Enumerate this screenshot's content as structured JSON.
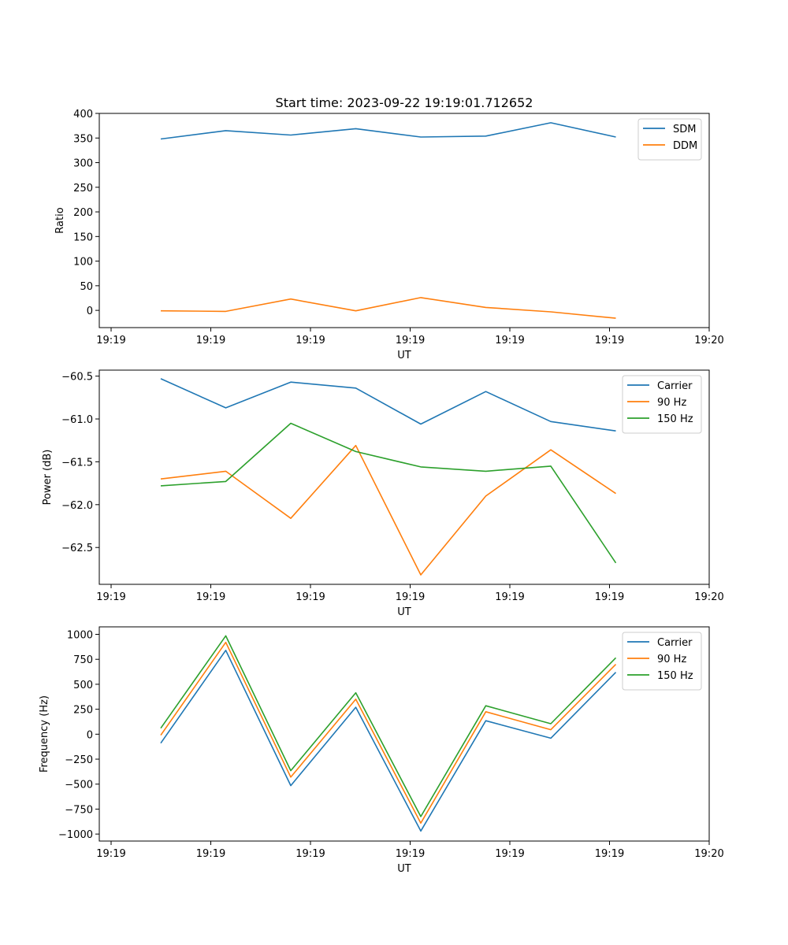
{
  "colors": {
    "blue": "#1f77b4",
    "orange": "#ff7f0e",
    "green": "#2ca02c"
  },
  "chart_data": [
    {
      "type": "line",
      "title": "Start time: 2023-09-22 19:19:01.712652",
      "xlabel": "UT",
      "ylabel": "Ratio",
      "x_tick_labels": [
        "19:19",
        "19:19",
        "19:19",
        "19:19",
        "19:19",
        "19:19",
        "19:20"
      ],
      "ylim": [
        -35,
        400
      ],
      "yticks": [
        0,
        50,
        100,
        150,
        200,
        250,
        300,
        350,
        400
      ],
      "ytick_labels": [
        "0",
        "50",
        "100",
        "150",
        "200",
        "250",
        "300",
        "350",
        "400"
      ],
      "series": [
        {
          "name": "SDM",
          "color": "blue",
          "values": [
            348,
            365,
            356,
            369,
            352,
            354,
            381,
            352
          ]
        },
        {
          "name": "DDM",
          "color": "orange",
          "values": [
            -1,
            -2,
            23,
            -1,
            26,
            6,
            -3,
            -16
          ]
        }
      ],
      "legend": "top-right"
    },
    {
      "type": "line",
      "title": "",
      "xlabel": "UT",
      "ylabel": "Power (dB)",
      "x_tick_labels": [
        "19:19",
        "19:19",
        "19:19",
        "19:19",
        "19:19",
        "19:19",
        "19:20"
      ],
      "ylim": [
        -62.93,
        -60.43
      ],
      "yticks": [
        -62.5,
        -62.0,
        -61.5,
        -61.0,
        -60.5
      ],
      "ytick_labels": [
        "−62.5",
        "−62.0",
        "−61.5",
        "−61.0",
        "−60.5"
      ],
      "series": [
        {
          "name": "Carrier",
          "color": "blue",
          "values": [
            -60.53,
            -60.87,
            -60.57,
            -60.64,
            -61.06,
            -60.68,
            -61.03,
            -61.14
          ]
        },
        {
          "name": "90 Hz",
          "color": "orange",
          "values": [
            -61.7,
            -61.61,
            -62.16,
            -61.31,
            -62.82,
            -61.9,
            -61.36,
            -61.87
          ]
        },
        {
          "name": "150 Hz",
          "color": "green",
          "values": [
            -61.78,
            -61.73,
            -61.05,
            -61.38,
            -61.56,
            -61.61,
            -61.55,
            -62.68
          ]
        }
      ],
      "legend": "top-right"
    },
    {
      "type": "line",
      "title": "",
      "xlabel": "UT",
      "ylabel": "Frequency (Hz)",
      "x_tick_labels": [
        "19:19",
        "19:19",
        "19:19",
        "19:19",
        "19:19",
        "19:19",
        "19:20"
      ],
      "ylim": [
        -1070,
        1075
      ],
      "yticks": [
        -1000,
        -750,
        -500,
        -250,
        0,
        250,
        500,
        750,
        1000
      ],
      "ytick_labels": [
        "−1000",
        "−750",
        "−500",
        "−250",
        "0",
        "250",
        "500",
        "750",
        "1000"
      ],
      "series": [
        {
          "name": "Carrier",
          "color": "blue",
          "values": [
            -90,
            840,
            -515,
            270,
            -970,
            135,
            -40,
            620
          ]
        },
        {
          "name": "90 Hz",
          "color": "orange",
          "values": [
            -10,
            920,
            -430,
            350,
            -890,
            225,
            45,
            700
          ]
        },
        {
          "name": "150 Hz",
          "color": "green",
          "values": [
            60,
            985,
            -365,
            415,
            -825,
            285,
            105,
            765
          ]
        }
      ],
      "legend": "top-right"
    }
  ]
}
